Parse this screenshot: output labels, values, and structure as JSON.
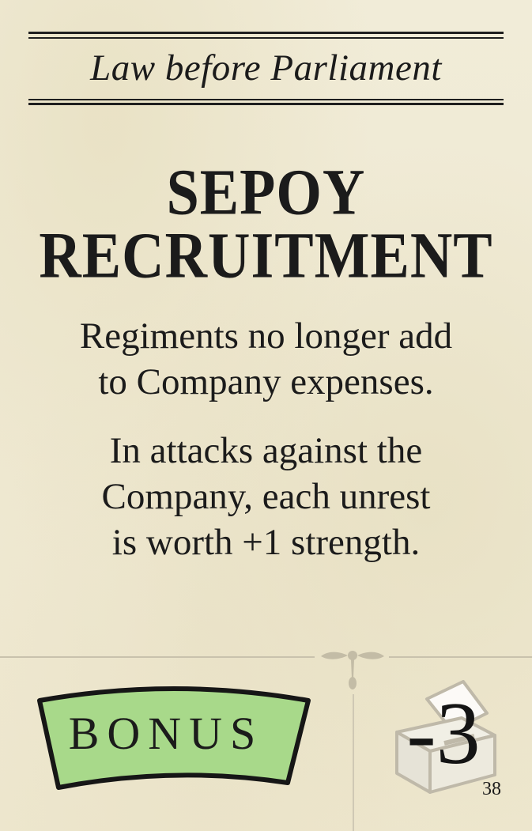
{
  "card": {
    "subtitle": "Law before Parliament",
    "title_lines": [
      "SEPOY",
      "RECRUITMENT"
    ],
    "effect_paragraphs": [
      [
        "Regiments no longer add",
        "to Company expenses."
      ],
      [
        "In attacks against the",
        "Company, each unrest",
        "is worth +1 strength."
      ]
    ],
    "bonus_label": "BONUS",
    "vote_value": "-3",
    "card_number": "38",
    "colors": {
      "background": "#efe9d2",
      "ink": "#1b1b1b",
      "bonus_fill": "#a8d98a",
      "divider": "#c9c2ad"
    },
    "icons": [
      "bonus-banner-icon",
      "ballot-box-icon",
      "ornament-icon"
    ]
  }
}
